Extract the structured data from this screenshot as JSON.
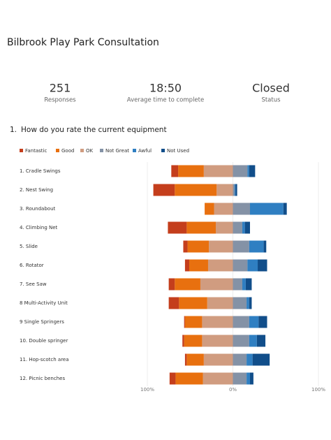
{
  "header": {
    "title": "Bilbrook Play Park Consultation"
  },
  "stats": [
    {
      "value": "251",
      "label": "Responses"
    },
    {
      "value": "18:50",
      "label": "Average time to complete"
    },
    {
      "value": "Closed",
      "label": "Status"
    }
  ],
  "question": {
    "number": "1.",
    "text": "How do you rate the current equipment"
  },
  "chart_data": {
    "type": "diverging-bar",
    "categories": [
      "1. Cradle Swings",
      "2. Nest Swing",
      "3. Roundabout",
      "4. Climbing Net",
      "5. Slide",
      "6. Rotator",
      "7. See Saw",
      "8 Multi-Activity Unit",
      "9 Single Springers",
      "10. Double springer",
      "11. Hop-scotch area",
      "12. Picnic benches"
    ],
    "series": [
      {
        "name": "Fantastic",
        "color": "#c43e1c",
        "values": [
          8,
          25,
          0,
          22,
          5,
          5,
          7,
          12,
          1,
          2,
          2,
          7
        ]
      },
      {
        "name": "Good",
        "color": "#e8700f",
        "values": [
          30,
          49,
          11,
          34,
          25,
          22,
          30,
          33,
          20,
          21,
          20,
          32
        ]
      },
      {
        "name": "OK",
        "color": "#d09c80",
        "values": [
          34,
          19,
          22,
          20,
          28,
          29,
          38,
          30,
          36,
          36,
          34,
          35
        ]
      },
      {
        "name": "Not Great",
        "color": "#8492a6",
        "values": [
          17,
          2,
          20,
          11,
          19,
          17,
          11,
          16,
          19,
          19,
          16,
          16
        ]
      },
      {
        "name": "Awful",
        "color": "#2f7fc2",
        "values": [
          2,
          1,
          39,
          3,
          17,
          12,
          4,
          3,
          11,
          9,
          7,
          4
        ]
      },
      {
        "name": "Not Used",
        "color": "#114e8a",
        "values": [
          7,
          2,
          4,
          6,
          3,
          11,
          7,
          3,
          10,
          10,
          20,
          4
        ]
      }
    ],
    "xlim": [
      -100,
      100
    ],
    "xticks": [
      {
        "value": -100,
        "label": "100%"
      },
      {
        "value": 0,
        "label": "0%"
      },
      {
        "value": 100,
        "label": "100%"
      }
    ],
    "grid": true
  }
}
